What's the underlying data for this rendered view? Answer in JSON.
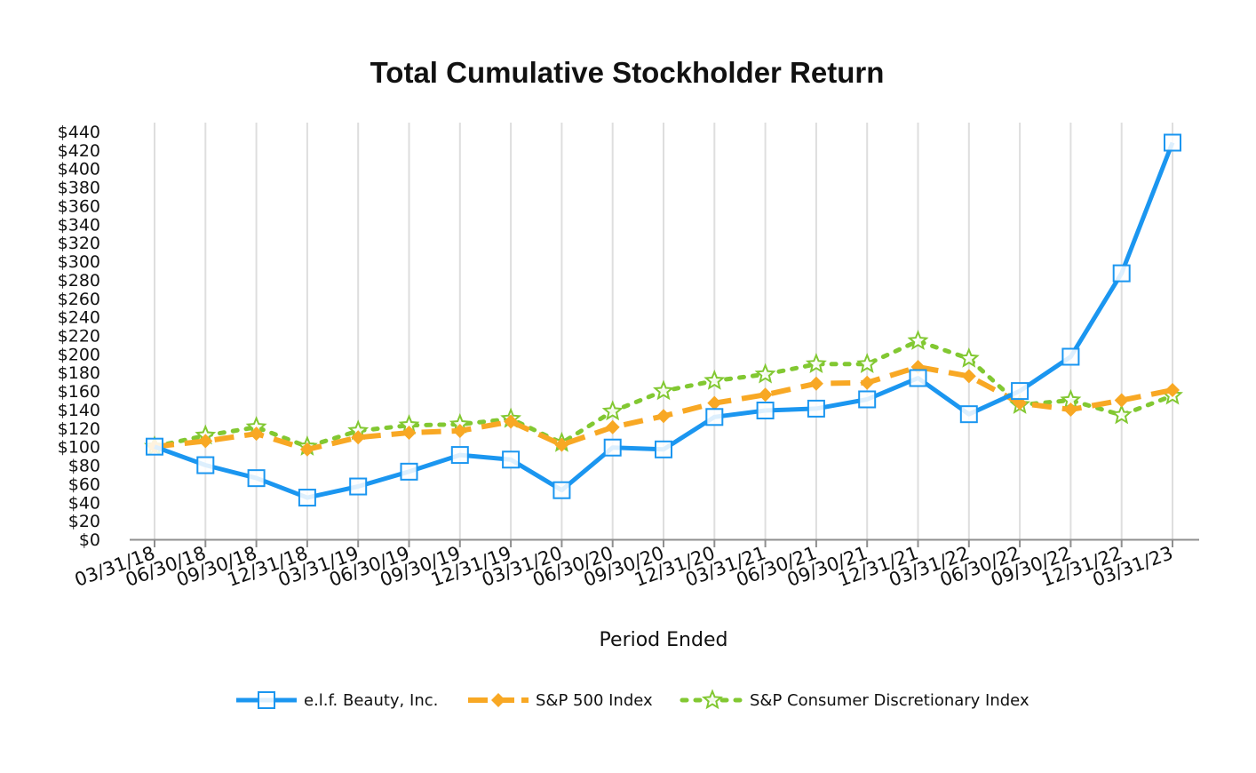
{
  "chart_data": {
    "type": "line",
    "title": "Total Cumulative Stockholder Return",
    "xlabel": "Period Ended",
    "ylabel": "",
    "ylim": [
      0,
      440
    ],
    "ytick_step": 20,
    "ytick_labels": [
      "$0",
      "$20",
      "$40",
      "$60",
      "$80",
      "$100",
      "$120",
      "$140",
      "$160",
      "$180",
      "$200",
      "$220",
      "$240",
      "$260",
      "$280",
      "$300",
      "$320",
      "$340",
      "$360",
      "$380",
      "$400",
      "$420",
      "$440"
    ],
    "grid": "vertical",
    "legend_position": "bottom",
    "categories": [
      "03/31/18",
      "06/30/18",
      "09/30/18",
      "12/31/18",
      "03/31/19",
      "06/30/19",
      "09/30/19",
      "12/31/19",
      "03/31/20",
      "06/30/20",
      "09/30/20",
      "12/31/20",
      "03/31/21",
      "06/30/21",
      "09/30/21",
      "12/31/21",
      "03/31/22",
      "06/30/22",
      "09/30/22",
      "12/31/22",
      "03/31/23"
    ],
    "series": [
      {
        "name": "e.l.f. Beauty, Inc.",
        "color": "#1B96F0",
        "line_style": "solid",
        "marker": "square",
        "values": [
          100,
          80,
          66,
          45,
          57,
          73,
          91,
          86,
          53,
          99,
          97,
          132,
          139,
          141,
          151,
          174,
          135,
          160,
          197,
          287,
          428
        ]
      },
      {
        "name": "S&P 500 Index",
        "color": "#F8A824",
        "line_style": "dashed",
        "marker": "diamond",
        "values": [
          100,
          106,
          114,
          97,
          110,
          115,
          117,
          127,
          102,
          121,
          133,
          147,
          156,
          168,
          169,
          186,
          176,
          147,
          140,
          150,
          161
        ]
      },
      {
        "name": "S&P Consumer Discretionary Index",
        "color": "#82C832",
        "line_style": "dotted",
        "marker": "star",
        "values": [
          100,
          112,
          121,
          100,
          117,
          123,
          124,
          130,
          104,
          138,
          160,
          171,
          178,
          189,
          189,
          214,
          195,
          145,
          150,
          134,
          155
        ]
      }
    ]
  }
}
